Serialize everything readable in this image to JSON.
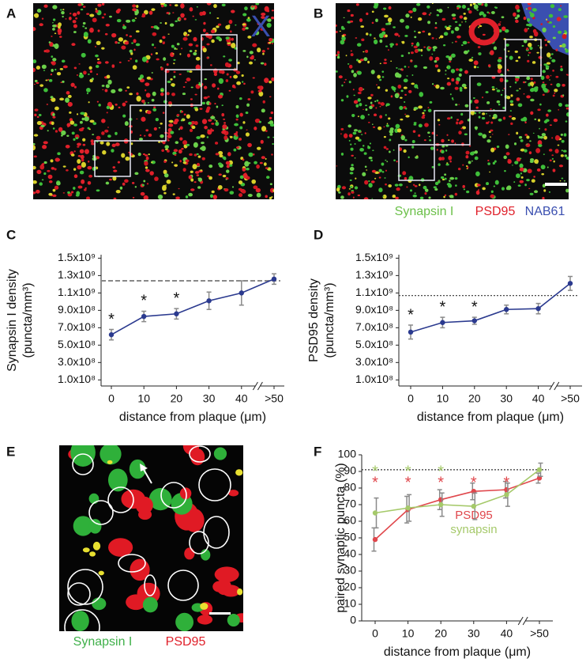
{
  "panels": [
    {
      "letter": "A"
    },
    {
      "letter": "B"
    },
    {
      "letter": "C"
    },
    {
      "letter": "D"
    },
    {
      "letter": "E"
    },
    {
      "letter": "F"
    }
  ],
  "image_a": {
    "mark": "X"
  },
  "image_b": {
    "legend": [
      "Synapsin I",
      "PSD95",
      "NAB61"
    ]
  },
  "image_e": {
    "legend": [
      "Synapsin I",
      "PSD95"
    ]
  },
  "chart_data": [
    {
      "type": "line",
      "ylabel": [
        "Synapsin I density",
        "(puncta/mm³)"
      ],
      "xlabel": "distance from plaque (μm)",
      "categories": [
        "0",
        "10",
        "20",
        "30",
        "40",
        ">50"
      ],
      "ylim": [
        30000000,
        1540000000
      ],
      "yticks": [
        {
          "value": 100000000,
          "label": "1.0x10⁸"
        },
        {
          "value": 300000000,
          "label": "3.0x10⁸"
        },
        {
          "value": 500000000,
          "label": "5.0x10⁸"
        },
        {
          "value": 700000000,
          "label": "7.0x10⁸"
        },
        {
          "value": 900000000,
          "label": "9.0x10⁸"
        },
        {
          "value": 1100000000,
          "label": "1.1x10⁹"
        },
        {
          "value": 1300000000,
          "label": "1.3x10⁹"
        },
        {
          "value": 1500000000,
          "label": "1.5x10⁹"
        }
      ],
      "refline": 1240000000,
      "refline_style": "dashed",
      "axis_break": true,
      "series": [
        {
          "name": "Synapsin I",
          "color": "#2b3a8f",
          "star_color": "#111111",
          "values": [
            620000000,
            830000000,
            860000000,
            1010000000,
            1100000000,
            1260000000
          ],
          "errors": [
            60000000,
            60000000,
            60000000,
            100000000,
            140000000,
            60000000
          ],
          "stars": [
            "*",
            "*",
            "*",
            null,
            null,
            null
          ]
        }
      ]
    },
    {
      "type": "line",
      "ylabel": [
        "PSD95 density",
        "(puncta/mm³)"
      ],
      "xlabel": "distance from plaque (μm)",
      "categories": [
        "0",
        "10",
        "20",
        "30",
        "40",
        ">50"
      ],
      "ylim": [
        30000000,
        1540000000
      ],
      "yticks": [
        {
          "value": 100000000,
          "label": "1.0x10⁸"
        },
        {
          "value": 300000000,
          "label": "3.0x10⁸"
        },
        {
          "value": 500000000,
          "label": "5.0x10⁸"
        },
        {
          "value": 700000000,
          "label": "7.0x10⁸"
        },
        {
          "value": 900000000,
          "label": "9.0x10⁸"
        },
        {
          "value": 1100000000,
          "label": "1.1x10⁹"
        },
        {
          "value": 1300000000,
          "label": "1.3x10⁹"
        },
        {
          "value": 1500000000,
          "label": "1.5x10⁹"
        }
      ],
      "refline": 1070000000,
      "refline_style": "dotted",
      "axis_break": true,
      "series": [
        {
          "name": "PSD95",
          "color": "#2b3a8f",
          "star_color": "#111111",
          "values": [
            650000000,
            760000000,
            780000000,
            910000000,
            920000000,
            1210000000
          ],
          "errors": [
            80000000,
            60000000,
            40000000,
            50000000,
            60000000,
            80000000
          ],
          "stars": [
            "*",
            "*",
            "*",
            null,
            null,
            null
          ]
        }
      ]
    },
    {
      "type": "line",
      "ylabel": [
        "paired synaptic puncta (%)"
      ],
      "xlabel": "distance from plaque (μm)",
      "categories": [
        "0",
        "10",
        "20",
        "30",
        "40",
        ">50"
      ],
      "ylim": [
        0,
        100
      ],
      "yticks": [
        0,
        10,
        20,
        30,
        40,
        50,
        60,
        70,
        80,
        90,
        100
      ],
      "refline": 91,
      "refline_style": "dotted",
      "axis_break": true,
      "series": [
        {
          "name": "PSD95",
          "color": "#e0474c",
          "star_color": "#e0474c",
          "values": [
            49,
            67,
            73,
            78,
            79,
            86
          ],
          "errors": [
            7,
            8,
            6,
            5,
            5,
            3
          ],
          "stars": [
            "*",
            "*",
            "*",
            "*",
            "*",
            null
          ]
        },
        {
          "name": "synapsin",
          "color": "#a5c96a",
          "star_color": "#a5c96a",
          "values": [
            65,
            68,
            70,
            69,
            76,
            91
          ],
          "errors": [
            9,
            8,
            7,
            8,
            7,
            4
          ],
          "stars": [
            "*",
            "*",
            "*",
            null,
            null,
            null
          ]
        }
      ]
    }
  ]
}
